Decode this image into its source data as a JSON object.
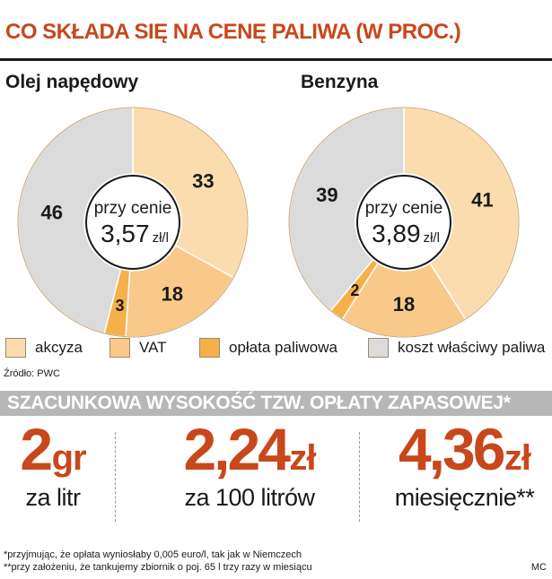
{
  "title": "CO SKŁADA SIĘ NA CENĘ PALIWA (W PROC.)",
  "colors": {
    "akcyza": "#fbdcae",
    "vat": "#f9c98a",
    "oplata": "#f5b04a",
    "koszt": "#dcdbdc",
    "accent": "#c8471b"
  },
  "chart_data": [
    {
      "type": "pie",
      "title": "Olej napędowy",
      "center_line1": "przy cenie",
      "center_value": "3,57",
      "center_unit": "zł/l",
      "slices": [
        {
          "label": "akcyza",
          "value": 33
        },
        {
          "label": "VAT",
          "value": 18
        },
        {
          "label": "opłata paliwowa",
          "value": 3
        },
        {
          "label": "koszt właściwy paliwa",
          "value": 46
        }
      ]
    },
    {
      "type": "pie",
      "title": "Benzyna",
      "center_line1": "przy cenie",
      "center_value": "3,89",
      "center_unit": "zł/l",
      "slices": [
        {
          "label": "akcyza",
          "value": 41
        },
        {
          "label": "VAT",
          "value": 18
        },
        {
          "label": "opłata paliwowa",
          "value": 2
        },
        {
          "label": "koszt właściwy paliwa",
          "value": 39
        }
      ]
    }
  ],
  "legend": [
    {
      "key": "akcyza",
      "label": "akcyza"
    },
    {
      "key": "vat",
      "label": "VAT"
    },
    {
      "key": "oplata",
      "label": "opłata paliwowa"
    },
    {
      "key": "koszt",
      "label": "koszt właściwy paliwa"
    }
  ],
  "source": "Źródło: PWC",
  "banner": "SZACUNKOWA WYSOKOŚĆ TZW. OPŁATY ZAPASOWEJ*",
  "stats": [
    {
      "value": "2",
      "unit": "gr",
      "sub": "za litr"
    },
    {
      "value": "2,24",
      "unit": "zł",
      "sub": "za 100 litrów"
    },
    {
      "value": "4,36",
      "unit": "zł",
      "sub": "miesięcznie**"
    }
  ],
  "footnotes": [
    "*przyjmując, że opłata wyniosłaby 0,005 euro/l, tak jak w Niemczech",
    "**przy założeniu, że tankujemy zbiornik o poj. 65 l trzy razy w miesiącu"
  ],
  "initials": "MC"
}
